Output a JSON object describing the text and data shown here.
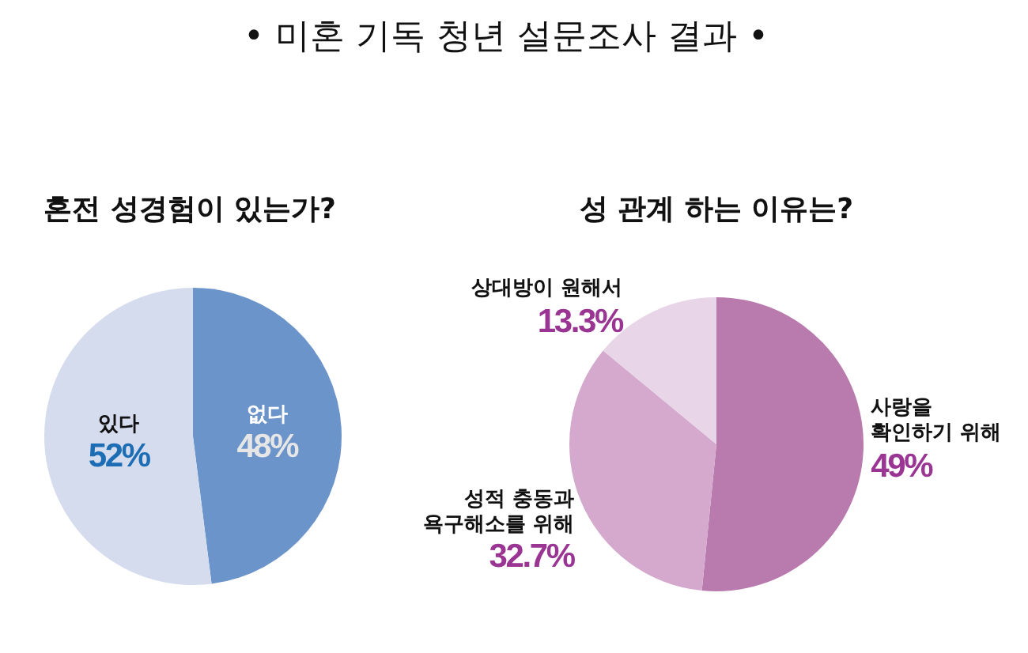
{
  "chart_data": [
    {
      "type": "other",
      "title": "• 미혼 기독 청년 설문조사 결과 •"
    },
    {
      "type": "pie",
      "title": "혼전 성경험이 있는가?",
      "categories": [
        "없다",
        "있다"
      ],
      "values": [
        48,
        52
      ],
      "colors": [
        "#6b94ca",
        "#d5dcee"
      ],
      "value_labels": [
        "48%",
        "52%"
      ]
    },
    {
      "type": "pie",
      "title": "성 관계 하는 이유는?",
      "categories": [
        "사랑을 확인하기 위해",
        "성적 충동과 욕구해소를 위해",
        "상대방이 원해서"
      ],
      "values": [
        49,
        32.7,
        13.3
      ],
      "colors": [
        "#b97aad",
        "#d4a9cd",
        "#e9d5e8"
      ],
      "value_labels": [
        "49%",
        "32.7%",
        "13.3%"
      ]
    }
  ]
}
